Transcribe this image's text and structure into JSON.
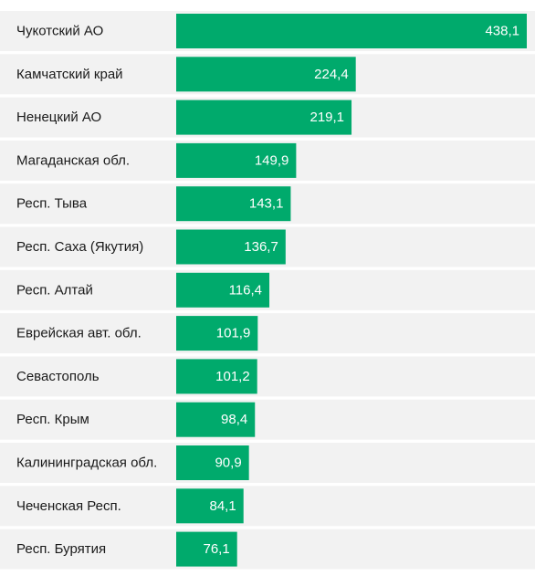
{
  "chart_data": {
    "type": "bar",
    "orientation": "horizontal",
    "categories": [
      "Чукотский АО",
      "Камчатский край",
      "Ненецкий АО",
      "Магаданская обл.",
      "Респ. Тыва",
      "Респ. Саха (Якутия)",
      "Респ. Алтай",
      "Еврейская авт. обл.",
      "Севастополь",
      "Респ. Крым",
      "Калининградская обл.",
      "Чеченская Респ.",
      "Респ. Бурятия"
    ],
    "values": [
      438.1,
      224.4,
      219.1,
      149.9,
      143.1,
      136.7,
      116.4,
      101.9,
      101.2,
      98.4,
      90.9,
      84.1,
      76.1
    ],
    "value_labels": [
      "438,1",
      "224,4",
      "219,1",
      "149,9",
      "143,1",
      "136,7",
      "116,4",
      "101,9",
      "101,2",
      "98,4",
      "90,9",
      "84,1",
      "76,1"
    ],
    "title": "",
    "xlabel": "",
    "ylabel": "",
    "xlim": [
      0,
      438.1
    ],
    "grid": false,
    "legend": "none",
    "colors": {
      "bar": "#00aa6c",
      "row_background": "#f2f2f2",
      "label_text": "#1a1a1a",
      "value_text": "#ffffff"
    }
  }
}
